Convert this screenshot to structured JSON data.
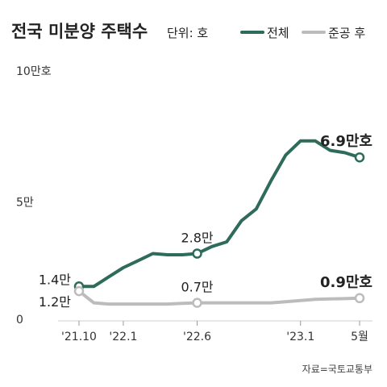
{
  "chart_data": {
    "type": "line",
    "title": "전국 미분양 주택수",
    "unit_label": "단위: 호",
    "categories": [
      "2021-10",
      "2021-11",
      "2021-12",
      "2022-01",
      "2022-02",
      "2022-03",
      "2022-04",
      "2022-05",
      "2022-06",
      "2022-07",
      "2022-08",
      "2022-09",
      "2022-10",
      "2022-11",
      "2022-12",
      "2023-01",
      "2023-02",
      "2023-03",
      "2023-04",
      "2023-05"
    ],
    "x_tick_labels": [
      {
        "index": 0,
        "label": "'21.10"
      },
      {
        "index": 3,
        "label": "'22.1"
      },
      {
        "index": 8,
        "label": "'22.6"
      },
      {
        "index": 15,
        "label": "'23.1"
      },
      {
        "index": 19,
        "label": "5월"
      }
    ],
    "y_tick_labels": [
      {
        "value": 0,
        "label": "0"
      },
      {
        "value": 5,
        "label": "5만"
      },
      {
        "value": 10,
        "label": "10만호"
      }
    ],
    "ylim": [
      0,
      10
    ],
    "grid": false,
    "legend_position": "top-right",
    "series": [
      {
        "name": "전체",
        "color": "#2e6b5a",
        "values": [
          1.4,
          1.4,
          1.8,
          2.2,
          2.5,
          2.8,
          2.75,
          2.75,
          2.8,
          3.1,
          3.3,
          4.2,
          4.7,
          5.9,
          7.0,
          7.6,
          7.6,
          7.2,
          7.1,
          6.9
        ]
      },
      {
        "name": "준공 후",
        "color": "#bcbcbc",
        "values": [
          1.2,
          0.7,
          0.65,
          0.65,
          0.65,
          0.65,
          0.65,
          0.68,
          0.7,
          0.7,
          0.7,
          0.7,
          0.7,
          0.7,
          0.75,
          0.8,
          0.85,
          0.87,
          0.88,
          0.9
        ]
      }
    ],
    "annotations": [
      {
        "series": 0,
        "index": 0,
        "text": "1.4만",
        "style": "normal",
        "position": "left"
      },
      {
        "series": 1,
        "index": 0,
        "text": "1.2만",
        "style": "normal",
        "position": "left-below"
      },
      {
        "series": 0,
        "index": 8,
        "text": "2.8만",
        "style": "normal",
        "position": "above"
      },
      {
        "series": 1,
        "index": 8,
        "text": "0.7만",
        "style": "normal",
        "position": "above"
      },
      {
        "series": 0,
        "index": 19,
        "text": "6.9만호",
        "style": "bold",
        "position": "above"
      },
      {
        "series": 1,
        "index": 19,
        "text": "0.9만호",
        "style": "bold",
        "position": "above"
      }
    ],
    "source": "자료=국토교통부"
  }
}
